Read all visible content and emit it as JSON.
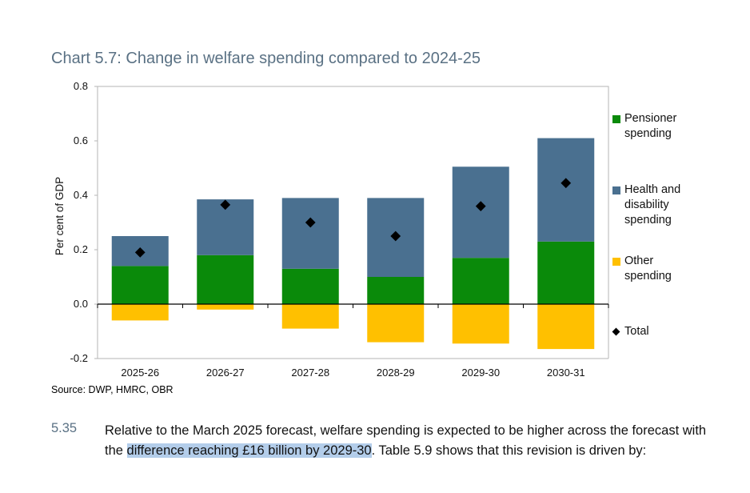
{
  "chart_data": {
    "type": "bar",
    "stacked": true,
    "title": "Chart 5.7: Change in welfare spending compared to 2024-25",
    "ylabel": "Per cent of GDP",
    "xlabel": "",
    "ylim": [
      -0.2,
      0.8
    ],
    "yticks": [
      "0.8",
      "0.6",
      "0.4",
      "0.2",
      "0.0",
      "-0.2"
    ],
    "ytick_values": [
      0.8,
      0.6,
      0.4,
      0.2,
      0.0,
      -0.2
    ],
    "categories": [
      "2025-26",
      "2026-27",
      "2027-28",
      "2028-29",
      "2029-30",
      "2030-31"
    ],
    "series": [
      {
        "name": "Pensioner spending",
        "color": "#0a8a0a",
        "values": [
          0.14,
          0.18,
          0.13,
          0.1,
          0.17,
          0.23
        ]
      },
      {
        "name": "Health and disability spending",
        "color": "#4a7090",
        "values": [
          0.11,
          0.205,
          0.26,
          0.29,
          0.335,
          0.38
        ]
      },
      {
        "name": "Other spending",
        "color": "#ffc000",
        "values": [
          -0.06,
          -0.02,
          -0.09,
          -0.14,
          -0.145,
          -0.165
        ]
      }
    ],
    "total": {
      "name": "Total",
      "values": [
        0.19,
        0.365,
        0.3,
        0.25,
        0.36,
        0.445
      ]
    },
    "legend_position": "right",
    "source": "Source: DWP, HMRC, OBR"
  },
  "legend": [
    {
      "label": "Pensioner\nspending",
      "type": "swatch",
      "color": "#0a8a0a"
    },
    {
      "label": "Health and\ndisability\nspending",
      "type": "swatch",
      "color": "#4a7090"
    },
    {
      "label": "Other\nspending",
      "type": "swatch",
      "color": "#ffc000"
    },
    {
      "label": "Total",
      "type": "diamond",
      "color": "#000000"
    }
  ],
  "paragraph": {
    "number": "5.35",
    "text_before": "Relative to the March 2025 forecast, welfare spending is expected to be higher across the forecast with the ",
    "highlighted": "difference reaching £16 billion by 2029-30",
    "text_after": ". Table 5.9 shows that this revision is driven by:"
  }
}
